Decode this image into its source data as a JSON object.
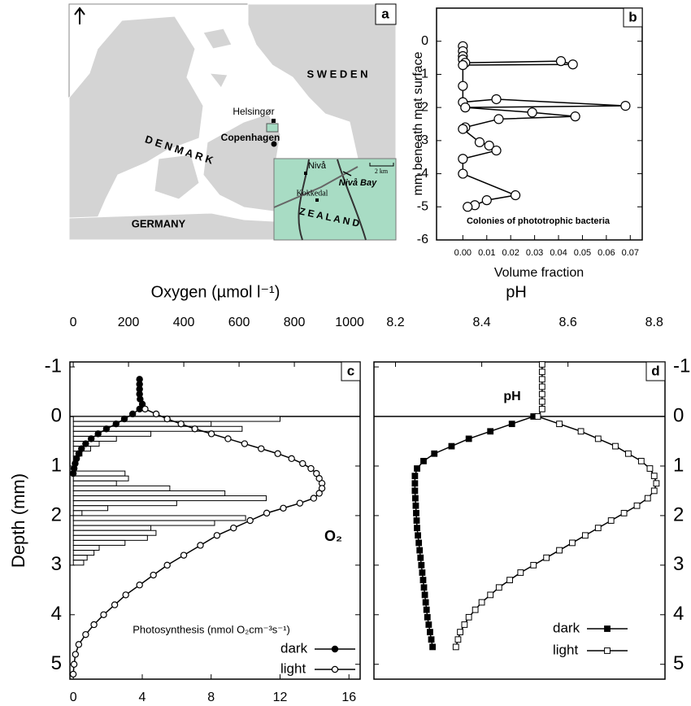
{
  "map": {
    "label": "a",
    "sweden": "S W E D E N",
    "denmark": "D E N M A R K",
    "germany": "GERMANY",
    "zealand": "Z E A L A N D",
    "helsingor": "Helsingør",
    "copenhagen": "Copenhagen",
    "niva": "Nivå",
    "niva_bay": "Nivå Bay",
    "kokkedal": "Kokkedal",
    "scale": "2 km"
  },
  "chart_data": [
    {
      "type": "line",
      "label": "b",
      "ylabel": "mm beneath mat surface",
      "xlabel": "Volume fraction",
      "annotation": "Colonies of phototrophic bacteria",
      "xlim": [
        -0.011,
        0.075
      ],
      "xticks": [
        {
          "value": 0,
          "label": "0.00"
        },
        {
          "value": 0.01,
          "label": "0.01"
        },
        {
          "value": 0.02,
          "label": "0.02"
        },
        {
          "value": 0.03,
          "label": "0.03"
        },
        {
          "value": 0.04,
          "label": "0.04"
        },
        {
          "value": 0.05,
          "label": "0.05"
        },
        {
          "value": 0.06,
          "label": "0.06"
        },
        {
          "value": 0.07,
          "label": "0.07"
        }
      ],
      "ylim": [
        -6,
        1
      ],
      "yticks": [
        0,
        -1,
        -2,
        -3,
        -4,
        -5,
        -6
      ],
      "y_inverted": false,
      "series": [
        {
          "type": "line",
          "color": "#000000",
          "marker": "circle",
          "fill": "#ffffff",
          "depths": [
            -0.15,
            -0.3,
            -0.45,
            -0.55,
            -0.65,
            -0.6,
            -0.7,
            -0.72,
            -1.35,
            -1.84,
            -1.75,
            -1.95,
            -2.0,
            -2.15,
            -2.27,
            -2.35,
            -2.6,
            -2.65,
            -3.05,
            -3.15,
            -3.3,
            -3.55,
            -4.0,
            -4.65,
            -4.8,
            -4.95,
            -5.0
          ],
          "values": [
            0,
            0,
            0,
            0,
            0.001,
            0.041,
            0.046,
            0,
            0,
            0,
            0.014,
            0.068,
            0.001,
            0.029,
            0.047,
            0.015,
            0.001,
            0,
            0.007,
            0.011,
            0.014,
            0,
            0,
            0.022,
            0.01,
            0.005,
            0.002
          ]
        }
      ]
    },
    {
      "type": "combo",
      "label": "c",
      "xlabel": "Oxygen (µmol l⁻¹)",
      "x2label": "Photosynthesis (nmol O₂cm⁻³s⁻¹)",
      "ylabel": "Depth (mm)",
      "annotation": "O₂",
      "xlim": [
        -12,
        1038
      ],
      "xticks": [
        0,
        200,
        400,
        600,
        800,
        1000
      ],
      "x2lim": [
        -0.2,
        16.65
      ],
      "x2ticks": [
        0,
        4,
        8,
        12,
        16
      ],
      "ylim": [
        -1.1,
        5.3
      ],
      "yticks": [
        -1,
        0,
        1,
        2,
        3,
        4,
        5
      ],
      "y_inverted": true,
      "hlines": [
        0
      ],
      "series": [
        {
          "type": "bar",
          "axis": "x2",
          "color": "#000000",
          "fill": "#ffffff",
          "depths": [
            0.05,
            0.15,
            0.25,
            0.35,
            0.45,
            0.55,
            0.65,
            0.75,
            0.85,
            0.95,
            1.15,
            1.25,
            1.35,
            1.45,
            1.55,
            1.65,
            1.75,
            1.85,
            1.95,
            2.05,
            2.15,
            2.25,
            2.35,
            2.45,
            2.55,
            2.65,
            2.75,
            2.85,
            2.95
          ],
          "values": [
            12,
            8,
            9.8,
            4.5,
            2.5,
            1.5,
            1,
            0.5,
            0.3,
            0.2,
            3,
            3.2,
            2.5,
            5.6,
            8.8,
            11.2,
            6,
            2,
            0.5,
            10,
            8.2,
            4.5,
            4.8,
            4.3,
            3,
            1.5,
            1.2,
            0.8,
            0.6
          ]
        },
        {
          "type": "line",
          "name": "dark",
          "color": "#000000",
          "marker": "circle",
          "fill": "#000000",
          "depths": [
            -0.75,
            -0.65,
            -0.55,
            -0.45,
            -0.35,
            -0.25,
            -0.15,
            -0.05,
            0.05,
            0.15,
            0.25,
            0.35,
            0.45,
            0.55,
            0.65,
            0.75,
            0.85,
            0.95,
            1.05,
            1.15
          ],
          "values": [
            240,
            240,
            240,
            240,
            242,
            250,
            240,
            215,
            185,
            155,
            120,
            90,
            65,
            45,
            30,
            20,
            12,
            7,
            3,
            0
          ]
        },
        {
          "type": "line",
          "name": "light",
          "color": "#000000",
          "marker": "circle",
          "fill": "#ffffff",
          "depths": [
            -0.15,
            -0.05,
            0.05,
            0.15,
            0.25,
            0.35,
            0.45,
            0.55,
            0.65,
            0.75,
            0.85,
            0.95,
            1.05,
            1.15,
            1.25,
            1.35,
            1.45,
            1.55,
            1.65,
            1.75,
            1.85,
            1.95,
            2.1,
            2.25,
            2.4,
            2.6,
            2.8,
            3.0,
            3.2,
            3.4,
            3.6,
            3.8,
            4.0,
            4.2,
            4.4,
            4.6,
            4.8,
            5.0,
            5.2
          ],
          "values": [
            260,
            300,
            340,
            390,
            440,
            500,
            560,
            620,
            680,
            740,
            790,
            830,
            860,
            880,
            890,
            900,
            900,
            890,
            870,
            820,
            760,
            700,
            640,
            580,
            520,
            460,
            400,
            340,
            290,
            240,
            190,
            150,
            110,
            75,
            45,
            20,
            8,
            3,
            0
          ]
        }
      ]
    },
    {
      "type": "line",
      "label": "d",
      "xlabel": "pH",
      "annotation": "pH",
      "xlim": [
        8.15,
        8.825
      ],
      "xticks": [
        8.2,
        8.4,
        8.6,
        8.8
      ],
      "ylim": [
        -1.1,
        5.3
      ],
      "yticks": [
        -1,
        0,
        1,
        2,
        3,
        4,
        5
      ],
      "y_inverted": true,
      "hlines": [
        0
      ],
      "series": [
        {
          "type": "line",
          "name": "dark",
          "color": "#000000",
          "marker": "square",
          "fill": "#000000",
          "depths": [
            0,
            0.15,
            0.3,
            0.45,
            0.6,
            0.75,
            0.9,
            1.05,
            1.2,
            1.35,
            1.5,
            1.65,
            1.8,
            1.95,
            2.1,
            2.25,
            2.4,
            2.55,
            2.7,
            2.85,
            3.0,
            3.15,
            3.3,
            3.45,
            3.6,
            3.75,
            3.9,
            4.05,
            4.2,
            4.35,
            4.5,
            4.65
          ],
          "values": [
            8.52,
            8.47,
            8.42,
            8.37,
            8.33,
            8.29,
            8.265,
            8.25,
            8.245,
            8.245,
            8.245,
            8.246,
            8.247,
            8.248,
            8.249,
            8.25,
            8.252,
            8.254,
            8.256,
            8.258,
            8.26,
            8.262,
            8.264,
            8.266,
            8.268,
            8.27,
            8.272,
            8.274,
            8.277,
            8.28,
            8.283,
            8.286
          ]
        },
        {
          "type": "line",
          "name": "light",
          "color": "#000000",
          "marker": "square",
          "fill": "#ffffff",
          "depths": [
            -1.05,
            -0.9,
            -0.75,
            -0.6,
            -0.45,
            -0.3,
            -0.15,
            0,
            0.15,
            0.3,
            0.45,
            0.6,
            0.75,
            0.9,
            1.05,
            1.2,
            1.35,
            1.5,
            1.65,
            1.8,
            1.95,
            2.1,
            2.25,
            2.4,
            2.55,
            2.7,
            2.85,
            3.0,
            3.15,
            3.3,
            3.45,
            3.6,
            3.75,
            3.9,
            4.05,
            4.2,
            4.35,
            4.5,
            4.65
          ],
          "values": [
            8.54,
            8.54,
            8.54,
            8.54,
            8.54,
            8.54,
            8.54,
            8.53,
            8.58,
            8.63,
            8.67,
            8.71,
            8.74,
            8.77,
            8.79,
            8.8,
            8.805,
            8.8,
            8.785,
            8.76,
            8.73,
            8.7,
            8.67,
            8.64,
            8.61,
            8.58,
            8.55,
            8.52,
            8.49,
            8.465,
            8.44,
            8.42,
            8.4,
            8.385,
            8.37,
            8.36,
            8.35,
            8.345,
            8.34
          ]
        }
      ]
    }
  ]
}
